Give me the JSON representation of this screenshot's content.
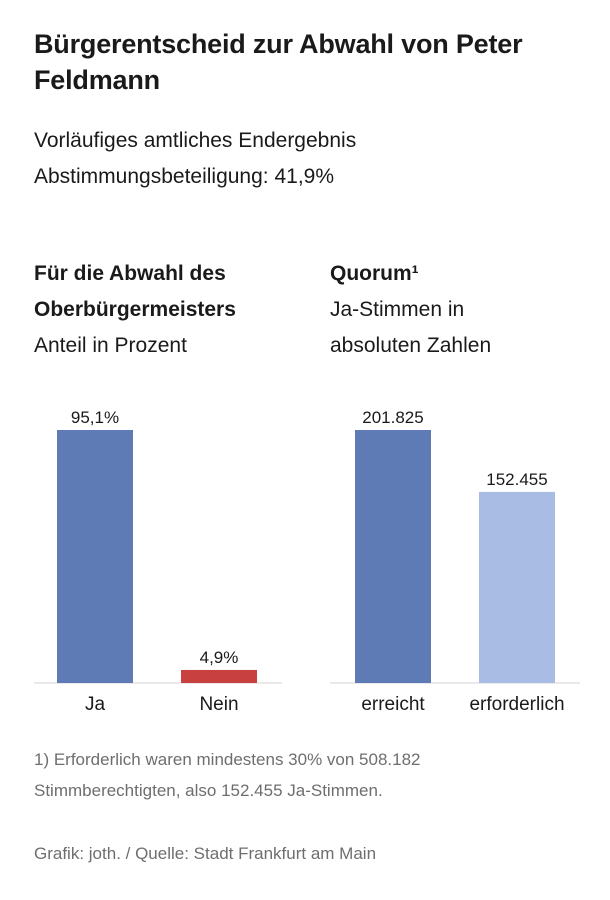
{
  "header": {
    "title": "Bürgerentscheid zur Abwahl von Peter Feldmann",
    "subtitle_line1": "Vorläufiges amtliches Endergebnis",
    "subtitle_line2": "Abstimmungsbeteiligung: 41,9%"
  },
  "chart_data": [
    {
      "type": "bar",
      "title": "Für die Abwahl des Oberbürgermeisters",
      "title_line1": "Für die Abwahl des",
      "title_line2": "Oberbürgermeisters",
      "subtitle": "Anteil in Prozent",
      "categories": [
        "Ja",
        "Nein"
      ],
      "values": [
        95.1,
        4.9
      ],
      "labels": [
        "95,1%",
        "4,9%"
      ],
      "colors": [
        "#5f7bb5",
        "#c8403f"
      ],
      "ylim": [
        0,
        95.1
      ],
      "grid": false
    },
    {
      "type": "bar",
      "title": "Quorum¹",
      "subtitle_line1": "Ja-Stimmen in",
      "subtitle_line2": "absoluten Zahlen",
      "categories": [
        "erreicht",
        "erforderlich"
      ],
      "values": [
        201825,
        152455
      ],
      "labels": [
        "201.825",
        "152.455"
      ],
      "colors": [
        "#5f7bb5",
        "#a9bce4"
      ],
      "ylim": [
        0,
        201825
      ],
      "grid": false
    }
  ],
  "footer": {
    "footnote_line1": "1) Erforderlich waren mindestens 30% von 508.182",
    "footnote_line2": "Stimmberechtigten, also 152.455 Ja-Stimmen.",
    "source": "Grafik: joth. / Quelle: Stadt Frankfurt am Main"
  }
}
